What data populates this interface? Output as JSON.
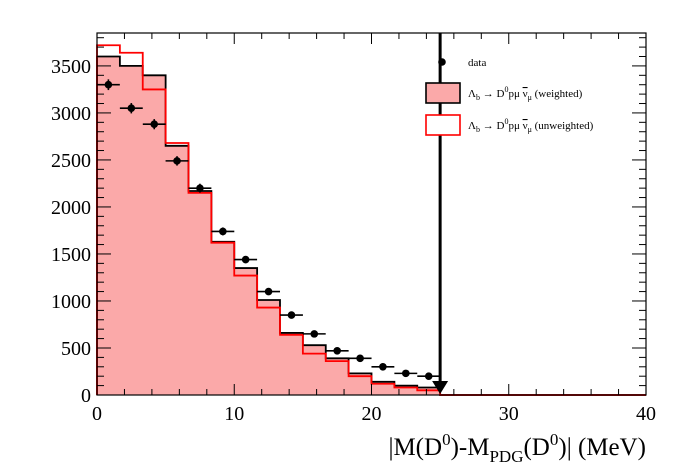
{
  "chart_data": {
    "type": "histogram",
    "xlabel": {
      "prefix": "|M(D",
      "sup1": "0",
      "mid": ")-M",
      "sub": "PDG",
      "mid2": "(D",
      "sup2": "0",
      "suffix": ")| (MeV)"
    },
    "ylabel": "",
    "xlim": [
      0,
      40
    ],
    "ylim": [
      0,
      3850
    ],
    "x_ticks": [
      0,
      10,
      20,
      30,
      40
    ],
    "y_ticks": [
      0,
      500,
      1000,
      1500,
      2000,
      2500,
      3000,
      3500
    ],
    "bin_edges": [
      0,
      1.667,
      3.333,
      5,
      6.667,
      8.333,
      10,
      11.667,
      13.333,
      15,
      16.667,
      18.333,
      20,
      21.667,
      23.333,
      25,
      26.667,
      28.333,
      30,
      31.667,
      33.333,
      35,
      36.667,
      38.333,
      40
    ],
    "series": [
      {
        "name": "data",
        "style": "points",
        "color": "#000000",
        "x": [
          0.83,
          2.5,
          4.17,
          5.83,
          7.5,
          9.17,
          10.83,
          12.5,
          14.17,
          15.83,
          17.5,
          19.17,
          20.83,
          22.5,
          24.17
        ],
        "values": [
          3300,
          3050,
          2880,
          2490,
          2200,
          1740,
          1440,
          1100,
          850,
          650,
          470,
          390,
          300,
          230,
          200
        ],
        "errors": [
          57,
          55,
          54,
          50,
          47,
          42,
          38,
          33,
          29,
          25,
          22,
          20,
          17,
          15,
          14
        ]
      },
      {
        "name": "weighted",
        "style": "filled-step",
        "color": "#000000",
        "fill": "#fba9a9",
        "values": [
          3600,
          3500,
          3400,
          2650,
          2170,
          1630,
          1350,
          1010,
          660,
          530,
          390,
          230,
          140,
          100,
          80,
          0,
          0,
          0,
          0,
          0,
          0,
          0,
          0,
          0
        ]
      },
      {
        "name": "unweighted",
        "style": "step",
        "color": "#ff0000",
        "values": [
          3720,
          3640,
          3250,
          2680,
          2150,
          1620,
          1270,
          930,
          640,
          440,
          360,
          200,
          120,
          80,
          50,
          0,
          0,
          0,
          0,
          0,
          0,
          0,
          0,
          0
        ]
      }
    ],
    "cut_line": {
      "x": 25,
      "color": "#000000"
    },
    "legend": {
      "placement": "top-right",
      "entries": [
        {
          "key": "data",
          "text": "data"
        },
        {
          "key": "weighted",
          "parts": [
            "Λ",
            "b",
            " → D",
            "0",
            "pμ ",
            "ν",
            "μ",
            " (weighted)"
          ]
        },
        {
          "key": "unweighted",
          "parts": [
            "Λ",
            "b",
            " → D",
            "0",
            "pμ ",
            "ν",
            "μ",
            " (unweighted)"
          ]
        }
      ]
    },
    "grid": false
  }
}
